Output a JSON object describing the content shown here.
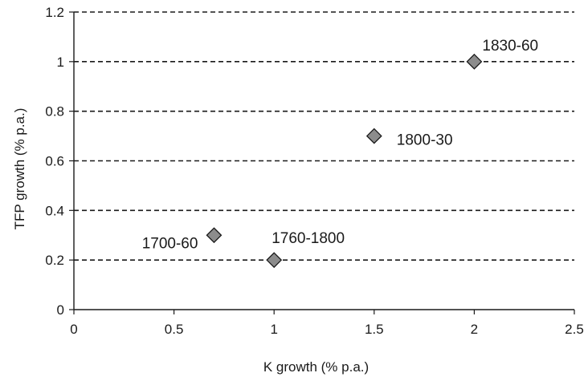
{
  "chart_data": {
    "type": "scatter",
    "title": "",
    "xlabel": "K growth (% p.a.)",
    "ylabel": "TFP growth (% p.a.)",
    "xlim": [
      0,
      2.5
    ],
    "ylim": [
      0,
      1.2
    ],
    "x_ticks": [
      "0",
      "0.5",
      "1",
      "1.5",
      "2",
      "2.5"
    ],
    "y_ticks": [
      "0",
      "0.2",
      "0.4",
      "0.6",
      "0.8",
      "1",
      "1.2"
    ],
    "grid": "horizontal dashed",
    "marker": "diamond",
    "marker_color": "#8c8c8c",
    "points": [
      {
        "label": "1700-60",
        "x": 0.7,
        "y": 0.3
      },
      {
        "label": "1760-1800",
        "x": 1.0,
        "y": 0.2
      },
      {
        "label": "1800-30",
        "x": 1.5,
        "y": 0.7
      },
      {
        "label": "1830-60",
        "x": 2.0,
        "y": 1.0
      }
    ]
  }
}
